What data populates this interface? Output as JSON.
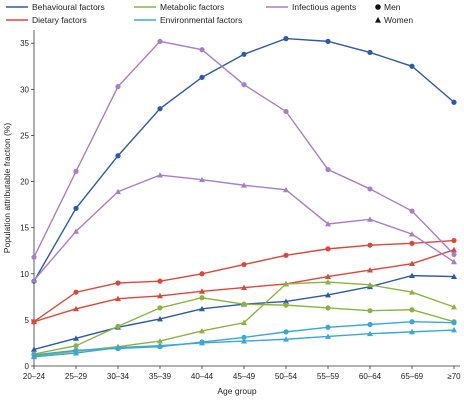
{
  "chart_data": {
    "type": "line",
    "xlabel": "Age group",
    "ylabel": "Population attributable fraction (%)",
    "ylim": [
      0,
      36
    ],
    "yticks": [
      0,
      5,
      10,
      15,
      20,
      25,
      30,
      35
    ],
    "grid": false,
    "legend_placement": "top",
    "categories": [
      "20–24",
      "25–29",
      "30–34",
      "35–39",
      "40–44",
      "45–49",
      "50–54",
      "55–59",
      "60–64",
      "65–69",
      "≥70"
    ],
    "factors": [
      {
        "label": "Behavioural factors",
        "color": "#2b5aa8"
      },
      {
        "label": "Dietary factors",
        "color": "#d9483b"
      },
      {
        "label": "Metabolic factors",
        "color": "#8db33f"
      },
      {
        "label": "Environmental factors",
        "color": "#3aa7d9"
      },
      {
        "label": "Infectious agents",
        "color": "#a77ec9"
      }
    ],
    "sex_legend": [
      {
        "label": "Men",
        "marker": "circle"
      },
      {
        "label": "Women",
        "marker": "triangle"
      }
    ],
    "series": [
      {
        "factor": "Behavioural factors",
        "sex": "Men",
        "marker": "circle",
        "color": "#2b5aa8",
        "values": [
          9.2,
          17.1,
          22.8,
          27.9,
          31.3,
          33.8,
          35.5,
          35.2,
          34.0,
          32.5,
          28.6
        ]
      },
      {
        "factor": "Behavioural factors",
        "sex": "Women",
        "marker": "triangle",
        "color": "#2b5aa8",
        "values": [
          1.8,
          3.0,
          4.2,
          5.1,
          6.2,
          6.7,
          7.0,
          7.7,
          8.6,
          9.8,
          9.7
        ]
      },
      {
        "factor": "Dietary factors",
        "sex": "Men",
        "marker": "circle",
        "color": "#d9483b",
        "values": [
          4.8,
          8.0,
          9.0,
          9.2,
          10.0,
          11.0,
          12.0,
          12.7,
          13.1,
          13.3,
          13.6
        ]
      },
      {
        "factor": "Dietary factors",
        "sex": "Women",
        "marker": "triangle",
        "color": "#d9483b",
        "values": [
          4.8,
          6.2,
          7.3,
          7.6,
          8.1,
          8.5,
          8.9,
          9.7,
          10.4,
          11.1,
          12.6
        ]
      },
      {
        "factor": "Metabolic factors",
        "sex": "Men",
        "marker": "circle",
        "color": "#8db33f",
        "values": [
          1.3,
          2.2,
          4.3,
          6.3,
          7.4,
          6.7,
          6.6,
          6.3,
          6.0,
          6.1,
          4.8
        ]
      },
      {
        "factor": "Metabolic factors",
        "sex": "Women",
        "marker": "triangle",
        "color": "#8db33f",
        "values": [
          1.1,
          1.6,
          2.1,
          2.7,
          3.8,
          4.7,
          8.9,
          9.1,
          8.8,
          8.0,
          6.4
        ]
      },
      {
        "factor": "Environmental factors",
        "sex": "Men",
        "marker": "circle",
        "color": "#3aa7d9",
        "values": [
          1.2,
          1.7,
          1.9,
          2.1,
          2.6,
          3.1,
          3.7,
          4.2,
          4.5,
          4.8,
          4.7
        ]
      },
      {
        "factor": "Environmental factors",
        "sex": "Women",
        "marker": "triangle",
        "color": "#3aa7d9",
        "values": [
          1.0,
          1.4,
          2.0,
          2.2,
          2.5,
          2.7,
          2.9,
          3.2,
          3.5,
          3.7,
          3.9
        ]
      },
      {
        "factor": "Infectious agents",
        "sex": "Men",
        "marker": "circle",
        "color": "#a77ec9",
        "values": [
          11.8,
          21.1,
          30.3,
          35.2,
          34.3,
          30.5,
          27.6,
          21.3,
          19.2,
          16.8,
          12.1
        ]
      },
      {
        "factor": "Infectious agents",
        "sex": "Women",
        "marker": "triangle",
        "color": "#a77ec9",
        "values": [
          9.3,
          14.6,
          18.9,
          20.7,
          20.2,
          19.6,
          19.1,
          15.4,
          15.9,
          14.3,
          11.3
        ]
      }
    ]
  }
}
